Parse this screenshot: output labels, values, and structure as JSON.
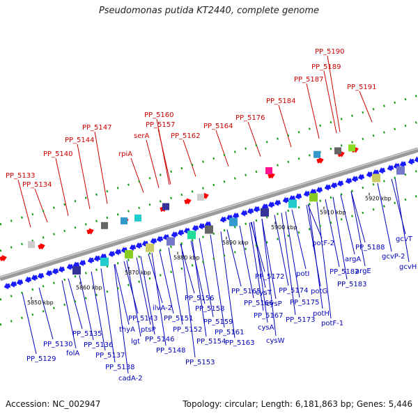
{
  "header": {
    "title": "Pseudomonas putida KT2440, complete genome"
  },
  "footer": {
    "accession": "Accession: NC_002947",
    "topology": "Topology: circular; Length: 6,181,863 bp; Genes: 5,446"
  },
  "colors": {
    "upper_label": "#cc0000",
    "lower_label": "#0000bb",
    "forward_gene": "#ff0000",
    "reverse_gene": "#1a1aff",
    "backbone": "#9a9a9a",
    "dots": "#119911"
  },
  "ticks": [
    "5850 kbp",
    "5860 kbp",
    "5870 kbp",
    "5880 kbp",
    "5890 kbp",
    "5900 kbp",
    "5910 kbp",
    "5920 kbp"
  ],
  "upper_labels": [
    "PP_5133",
    "PP_5134",
    "PP_5140",
    "PP_5144",
    "PP_5147",
    "rpiA",
    "serA",
    "PP_5157",
    "PP_5160",
    "PP_5162",
    "PP_5164",
    "PP_5176",
    "PP_5184",
    "PP_5187",
    "PP_5189",
    "PP_5190",
    "PP_5191"
  ],
  "lower_labels": [
    "PP_5129",
    "PP_5130",
    "folA",
    "PP_5135",
    "PP_5136",
    "PP_5137",
    "PP_5138",
    "cadA-2",
    "thyA",
    "PP_5143",
    "lgt",
    "PP_5146",
    "ptsP",
    "PP_5148",
    "ilvA-2",
    "PP_5151",
    "PP_5152",
    "PP_5153",
    "PP_5154",
    "PP_5156",
    "PP_5158",
    "PP_5159",
    "PP_5161",
    "PP_5163",
    "PP_5165",
    "PP_5166",
    "PP_5167",
    "PP_5172",
    "cysT",
    "cysP",
    "cysA",
    "cysW",
    "PP_5173",
    "PP_5174",
    "PP_5175",
    "potI",
    "potG",
    "potH",
    "potF-1",
    "potF-2",
    "PP_5182",
    "PP_5183",
    "argA",
    "argE",
    "PP_5188",
    "gcvP-2",
    "gcvT",
    "gcvH"
  ]
}
